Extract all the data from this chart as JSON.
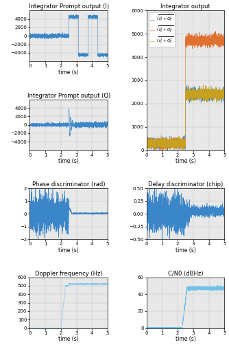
{
  "title_I": "Integrator Prompt output (I)",
  "title_Q": "Integrator Prompt output (Q)",
  "title_int_out": "Integrator output",
  "title_phase": "Phase discriminator (rad)",
  "title_delay": "Delay discriminator (chip)",
  "title_doppler": "Doppler frequency (Hz)",
  "title_cn0": "C/N0 (dBHz)",
  "xlabel": "time (s)",
  "xlim": [
    0,
    5
  ],
  "ylim_I": [
    -6000,
    6000
  ],
  "ylim_Q": [
    -6000,
    6000
  ],
  "ylim_int": [
    0,
    6000
  ],
  "ylim_phase": [
    -2,
    2
  ],
  "ylim_delay": [
    -0.5,
    0.5
  ],
  "ylim_doppler": [
    0,
    600
  ],
  "ylim_cn0": [
    0,
    60
  ],
  "yticks_I": [
    -4000,
    -2000,
    0,
    2000,
    4000
  ],
  "yticks_Q": [
    -4000,
    -2000,
    0,
    2000,
    4000
  ],
  "yticks_int": [
    0,
    1000,
    2000,
    3000,
    4000,
    5000,
    6000
  ],
  "yticks_phase": [
    -2,
    -1,
    0,
    1,
    2
  ],
  "yticks_delay": [
    -0.5,
    -0.25,
    0,
    0.25,
    0.5
  ],
  "yticks_doppler": [
    0,
    100,
    200,
    300,
    400,
    500,
    600
  ],
  "yticks_cn0": [
    0,
    20,
    40,
    60
  ],
  "xticks": [
    0,
    1,
    2,
    3,
    4,
    5
  ],
  "legend_labels": [
    "$\\sqrt{I_P^2 + Q_P^2}$",
    "$\\sqrt{I_E^2 + Q_E^2}$",
    "$\\sqrt{I_L^2 + Q_L^2}$"
  ],
  "color_blue": "#3a86c8",
  "color_orange": "#e07030",
  "color_yellow": "#c8a020",
  "color_light_blue": "#70c0e8",
  "background": "#e8e8e8",
  "title_fontsize": 6.0,
  "tick_fontsize": 5.0,
  "xlabel_fontsize": 5.5,
  "legend_fontsize": 4.0,
  "linewidth": 0.4
}
